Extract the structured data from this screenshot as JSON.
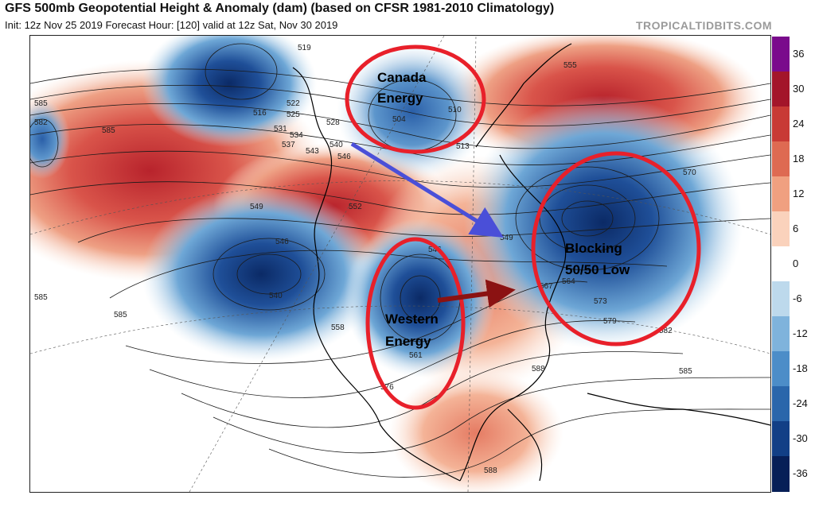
{
  "header": {
    "title": "GFS 500mb Geopotential Height & Anomaly (dam) (based on CFSR 1981-2010 Climatology)",
    "subtitle": "Init: 12z Nov 25 2019   Forecast Hour: [120]   valid at 12z Sat, Nov 30 2019",
    "brand": "TROPICALTIDBITS.COM"
  },
  "colorbar": {
    "ticks": [
      "36",
      "30",
      "24",
      "18",
      "12",
      "6",
      "0",
      "-6",
      "-12",
      "-18",
      "-24",
      "-30",
      "-36"
    ],
    "colors": [
      "#7a0b8c",
      "#a3152a",
      "#c83a35",
      "#de6a52",
      "#f0a080",
      "#fad2bc",
      "#ffffff",
      "#bdd9ec",
      "#7fb3dc",
      "#4c8dc8",
      "#2a66ab",
      "#123f86",
      "#071f57"
    ]
  },
  "annotations": {
    "canada": "Canada\nEnergy",
    "western": "Western\nEnergy",
    "blocking": "Blocking\n50/50 Low"
  },
  "contour_labels": [
    "519",
    "522",
    "525",
    "516",
    "528",
    "531",
    "534",
    "537",
    "540",
    "543",
    "546",
    "549",
    "552",
    "555",
    "558",
    "561",
    "564",
    "567",
    "570",
    "573",
    "576",
    "579",
    "582",
    "585",
    "588",
    "510",
    "513",
    "504"
  ],
  "colors": {
    "warm_anomaly": "#d9544a",
    "cold_anomaly": "#1f4f98",
    "circle": "#e8202a",
    "blue_arrow": "#4a4fd8",
    "red_arrow": "#8b1212"
  }
}
